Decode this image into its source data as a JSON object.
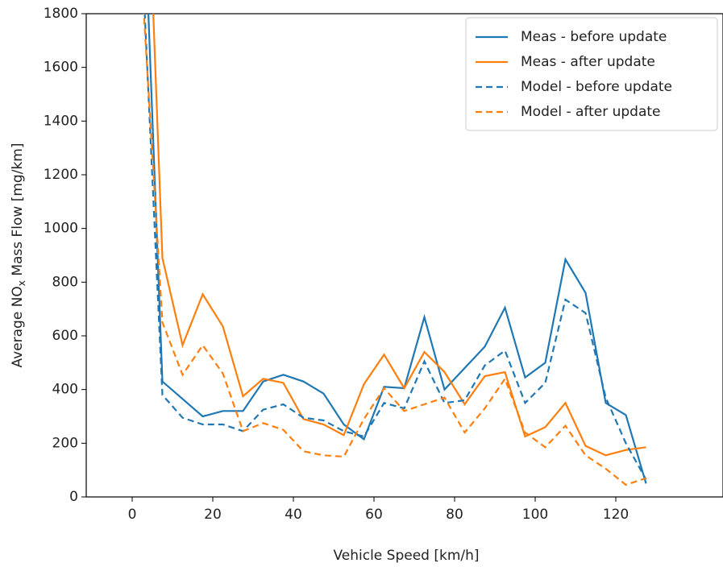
{
  "chart_data": {
    "type": "line",
    "xlabel": "Vehicle Speed [km/h]",
    "ylabel": [
      "Average NO",
      "x",
      " Mass Flow [mg/km]"
    ],
    "x": [
      2.5,
      7.5,
      12.5,
      17.5,
      22.5,
      27.5,
      32.5,
      37.5,
      42.5,
      47.5,
      52.5,
      57.5,
      62.5,
      67.5,
      72.5,
      77.5,
      82.5,
      87.5,
      92.5,
      97.5,
      102.5,
      107.5,
      112.5,
      117.5,
      122.5,
      127.5
    ],
    "series": [
      {
        "name": "Meas - before update",
        "color": "#1f77b4",
        "dash": false,
        "values": [
          2400,
          430,
          365,
          300,
          320,
          320,
          430,
          455,
          430,
          385,
          270,
          215,
          410,
          405,
          670,
          400,
          480,
          560,
          705,
          445,
          500,
          885,
          760,
          350,
          305,
          50
        ]
      },
      {
        "name": "Meas - after update",
        "color": "#ff7f0e",
        "dash": false,
        "values": [
          2900,
          890,
          565,
          755,
          635,
          375,
          440,
          425,
          290,
          270,
          230,
          420,
          530,
          405,
          540,
          465,
          345,
          450,
          465,
          225,
          260,
          350,
          190,
          155,
          175,
          185
        ]
      },
      {
        "name": "Model - before update",
        "color": "#1f77b4",
        "dash": true,
        "values": [
          2000,
          380,
          295,
          270,
          270,
          245,
          325,
          345,
          295,
          285,
          245,
          225,
          350,
          330,
          505,
          350,
          360,
          490,
          545,
          350,
          425,
          735,
          685,
          370,
          200,
          65
        ]
      },
      {
        "name": "Model - after update",
        "color": "#ff7f0e",
        "dash": true,
        "values": [
          1900,
          650,
          455,
          565,
          460,
          245,
          275,
          250,
          170,
          155,
          150,
          290,
          405,
          320,
          345,
          370,
          240,
          330,
          440,
          240,
          185,
          265,
          155,
          105,
          45,
          70
        ]
      }
    ],
    "xlim": [
      -11.4,
      146.6
    ],
    "xticks": [
      0,
      20,
      40,
      60,
      80,
      100,
      120
    ],
    "ylim": [
      0,
      1800
    ],
    "yticks": [
      0,
      200,
      400,
      600,
      800,
      1000,
      1200,
      1400,
      1600,
      1800
    ],
    "legend": "upper right"
  }
}
